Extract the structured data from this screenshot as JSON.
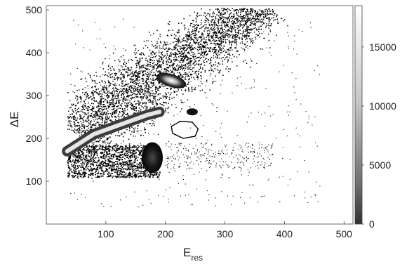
{
  "chart_data": {
    "type": "heatmap",
    "xlabel": "E",
    "xlabel_sub": "res",
    "ylabel": "ΔE",
    "xlim": [
      0,
      515
    ],
    "ylim": [
      0,
      510
    ],
    "xticks": [
      100,
      200,
      300,
      400,
      500
    ],
    "yticks": [
      100,
      200,
      300,
      400,
      500
    ],
    "colorbar": {
      "range": [
        0,
        18500
      ],
      "ticks": [
        0,
        5000,
        10000,
        15000
      ],
      "colormap": "grayscale, dark (low) to white (high)"
    },
    "grid": false,
    "features": [
      {
        "name": "lower-left band",
        "x_range": [
          35,
          190
        ],
        "y_range": [
          110,
          185
        ],
        "intensity": "low"
      },
      {
        "name": "upper diagonal band",
        "x_range": [
          40,
          380
        ],
        "y_range": [
          160,
          510
        ],
        "intensity": "low"
      },
      {
        "name": "curved bright ridge",
        "points": [
          [
            35,
            170
          ],
          [
            80,
            210
          ],
          [
            130,
            235
          ],
          [
            170,
            255
          ],
          [
            190,
            262
          ]
        ],
        "intensity": "high"
      },
      {
        "name": "blob",
        "center": [
          178,
          155
        ],
        "intensity": "medium"
      },
      {
        "name": "blob",
        "center": [
          210,
          335
        ],
        "intensity": "high"
      },
      {
        "name": "blob",
        "center": [
          245,
          262
        ],
        "intensity": "medium"
      }
    ],
    "gate_polygon": [
      [
        210,
        228
      ],
      [
        225,
        240
      ],
      [
        245,
        238
      ],
      [
        255,
        222
      ],
      [
        250,
        205
      ],
      [
        230,
        200
      ],
      [
        212,
        212
      ]
    ]
  }
}
